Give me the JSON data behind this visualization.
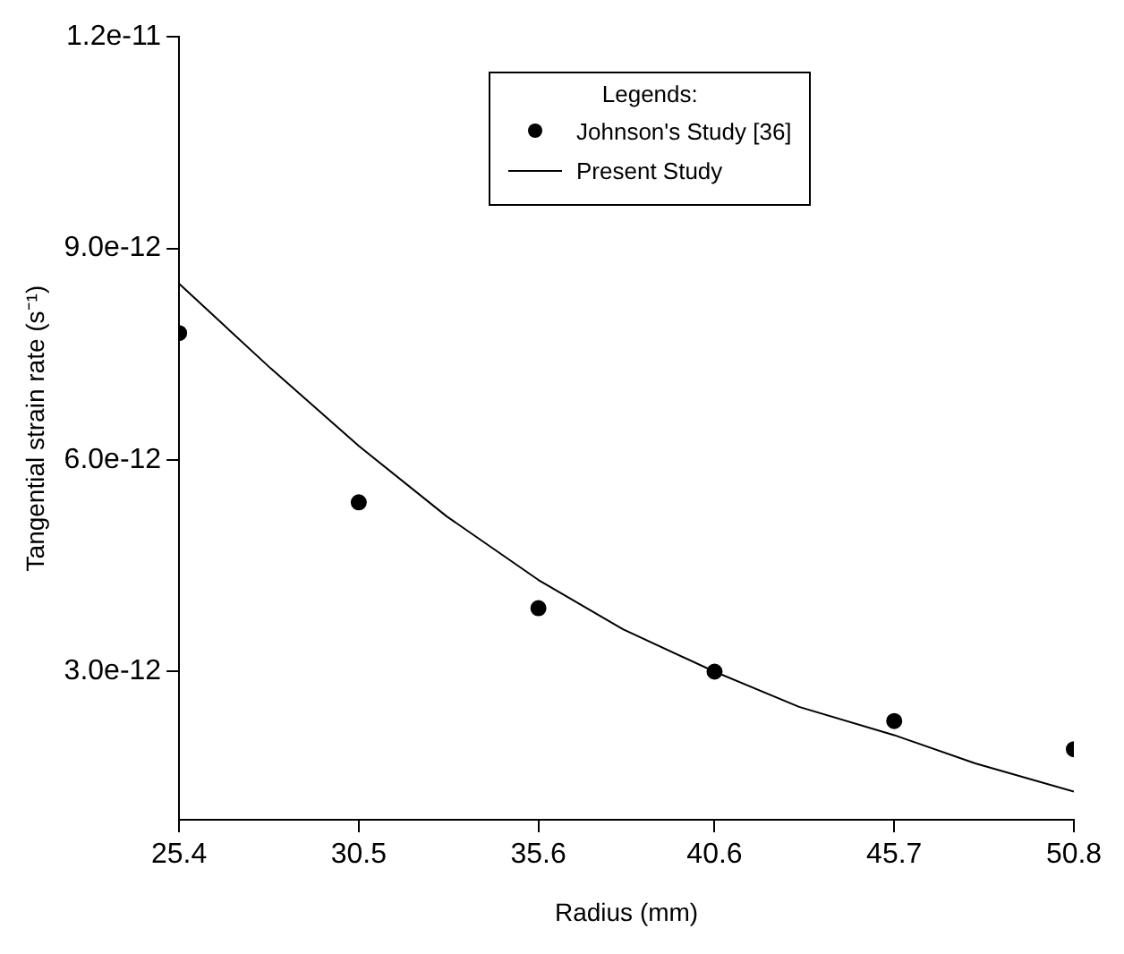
{
  "chart_data": {
    "type": "scatter",
    "xlabel": "Radius (mm)",
    "ylabel": "Tangential strain rate (s⁻¹)",
    "legend_title": "Legends:",
    "legend": "top",
    "grid": false,
    "xlim": [
      25.4,
      50.8
    ],
    "xticks": [
      25.4,
      30.5,
      35.6,
      40.6,
      45.7,
      50.8
    ],
    "ylim": [
      9e-13,
      1.2e-11
    ],
    "yticks": [
      {
        "value": 3e-12,
        "label": "3.0e-12"
      },
      {
        "value": 6e-12,
        "label": "6.0e-12"
      },
      {
        "value": 9e-12,
        "label": "9.0e-12"
      },
      {
        "value": 1.2e-11,
        "label": "1.2e-11"
      }
    ],
    "series": [
      {
        "name": "Johnson's Study [36]",
        "marker": "circle",
        "color": "#000000",
        "x": [
          25.4,
          30.5,
          35.6,
          40.6,
          45.7,
          50.8
        ],
        "values": [
          7.8e-12,
          5.4e-12,
          3.9e-12,
          3e-12,
          2.3e-12,
          1.9e-12
        ]
      },
      {
        "name": "Present Study",
        "type": "line",
        "marker": "none",
        "line_style": "solid",
        "color": "#000000",
        "x": [
          25.4,
          28,
          30.5,
          33,
          35.6,
          38,
          40.6,
          43,
          45.7,
          48,
          50.8
        ],
        "values": [
          8.5e-12,
          7.3e-12,
          6.2e-12,
          5.2e-12,
          4.3e-12,
          3.6e-12,
          3e-12,
          2.5e-12,
          2.1e-12,
          1.7e-12,
          1.3e-12
        ]
      }
    ]
  }
}
